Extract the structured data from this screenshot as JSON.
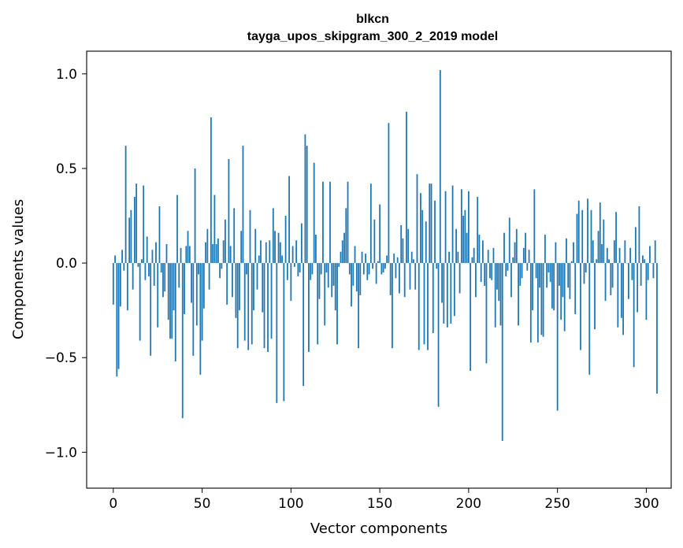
{
  "chart_data": {
    "type": "bar",
    "title": "blkcn",
    "subtitle": "tayga_upos_skipgram_300_2_2019 model",
    "xlabel": "Vector components",
    "ylabel": "Components values",
    "xlim": [
      -15,
      314
    ],
    "ylim": [
      -1.19,
      1.12
    ],
    "xticks": [
      0,
      50,
      100,
      150,
      200,
      250,
      300
    ],
    "yticks": [
      -1.0,
      -0.5,
      0.0,
      0.5,
      1.0
    ],
    "xtick_labels": [
      "0",
      "50",
      "100",
      "150",
      "200",
      "250",
      "300"
    ],
    "ytick_labels": [
      "−1.0",
      "−0.5",
      "0.0",
      "0.5",
      "1.0"
    ],
    "bar_color": "#1f77b4",
    "values": [
      -0.22,
      0.04,
      -0.6,
      -0.56,
      -0.23,
      0.07,
      -0.04,
      0.62,
      -0.25,
      0.24,
      0.28,
      -0.14,
      0.35,
      0.42,
      -0.02,
      -0.41,
      0.02,
      0.41,
      -0.09,
      0.14,
      -0.07,
      -0.49,
      0.07,
      -0.12,
      0.11,
      -0.34,
      0.3,
      -0.05,
      -0.18,
      -0.15,
      0.1,
      -0.3,
      -0.4,
      -0.4,
      -0.25,
      -0.52,
      0.36,
      -0.13,
      0.08,
      -0.82,
      -0.27,
      0.09,
      0.17,
      0.09,
      -0.21,
      -0.49,
      0.5,
      -0.33,
      -0.06,
      -0.59,
      -0.41,
      -0.24,
      0.11,
      0.18,
      -0.14,
      0.77,
      0.1,
      0.36,
      0.1,
      0.13,
      -0.08,
      -0.03,
      0.12,
      0.23,
      -0.22,
      0.55,
      0.09,
      -0.18,
      0.29,
      -0.29,
      -0.45,
      -0.25,
      0.17,
      0.62,
      -0.41,
      -0.06,
      -0.46,
      0.28,
      -0.43,
      -0.25,
      0.18,
      -0.14,
      0.04,
      0.12,
      -0.26,
      -0.45,
      0.11,
      -0.47,
      0.12,
      -0.4,
      0.29,
      0.17,
      -0.74,
      0.16,
      0.11,
      0.04,
      -0.73,
      0.25,
      -0.09,
      0.46,
      -0.2,
      0.09,
      -0.02,
      0.12,
      -0.07,
      -0.05,
      0.21,
      -0.65,
      0.68,
      0.62,
      -0.47,
      -0.09,
      -0.06,
      0.53,
      0.15,
      -0.43,
      -0.19,
      -0.06,
      0.43,
      -0.33,
      -0.05,
      -0.13,
      0.43,
      -0.18,
      -0.12,
      -0.25,
      -0.43,
      -0.02,
      0.06,
      0.12,
      0.16,
      0.29,
      0.43,
      -0.06,
      -0.23,
      -0.12,
      0.09,
      -0.15,
      -0.45,
      -0.17,
      0.06,
      -0.06,
      0.05,
      -0.09,
      -0.06,
      0.42,
      -0.03,
      0.23,
      -0.11,
      0.01,
      0.31,
      -0.06,
      -0.05,
      -0.03,
      0.04,
      0.74,
      -0.17,
      -0.45,
      0.05,
      -0.08,
      0.03,
      -0.16,
      0.2,
      0.13,
      -0.18,
      0.8,
      0.18,
      -0.14,
      0.06,
      0.02,
      -0.14,
      0.47,
      -0.46,
      0.37,
      0.28,
      -0.43,
      0.22,
      -0.46,
      0.42,
      0.42,
      -0.37,
      0.33,
      -0.03,
      -0.76,
      1.02,
      -0.21,
      -0.32,
      0.38,
      -0.34,
      0.06,
      -0.32,
      0.41,
      -0.28,
      0.18,
      0.06,
      -0.16,
      0.39,
      0.25,
      0.28,
      0.16,
      0.38,
      -0.57,
      0.03,
      0.08,
      -0.18,
      0.35,
      0.15,
      -0.1,
      0.12,
      -0.12,
      -0.53,
      0.07,
      -0.08,
      -0.09,
      0.08,
      -0.34,
      -0.14,
      -0.2,
      -0.33,
      -0.94,
      0.16,
      -0.07,
      -0.04,
      0.24,
      -0.18,
      0.03,
      0.11,
      0.18,
      -0.33,
      -0.12,
      -0.08,
      0.08,
      0.16,
      -0.04,
      0.07,
      -0.42,
      -0.25,
      0.39,
      -0.08,
      -0.42,
      -0.13,
      -0.38,
      -0.39,
      0.15,
      -0.13,
      -0.05,
      -0.1,
      -0.24,
      -0.25,
      0.11,
      -0.78,
      -0.12,
      -0.3,
      -0.18,
      -0.36,
      0.13,
      -0.13,
      -0.19,
      0.01,
      0.11,
      -0.27,
      0.26,
      0.33,
      -0.46,
      0.28,
      -0.11,
      -0.05,
      0.34,
      -0.59,
      0.28,
      0.12,
      -0.35,
      0.02,
      0.17,
      0.32,
      0.1,
      0.23,
      -0.2,
      0.08,
      0.02,
      -0.17,
      -0.13,
      0.12,
      0.27,
      -0.34,
      0.08,
      -0.29,
      -0.38,
      0.12,
      0.0,
      -0.19,
      0.08,
      -0.09,
      -0.55,
      0.19,
      -0.26,
      0.3,
      -0.12,
      0.04,
      0.02,
      -0.3,
      -0.09,
      0.09,
      0.0,
      -0.08,
      0.12,
      -0.69
    ]
  }
}
